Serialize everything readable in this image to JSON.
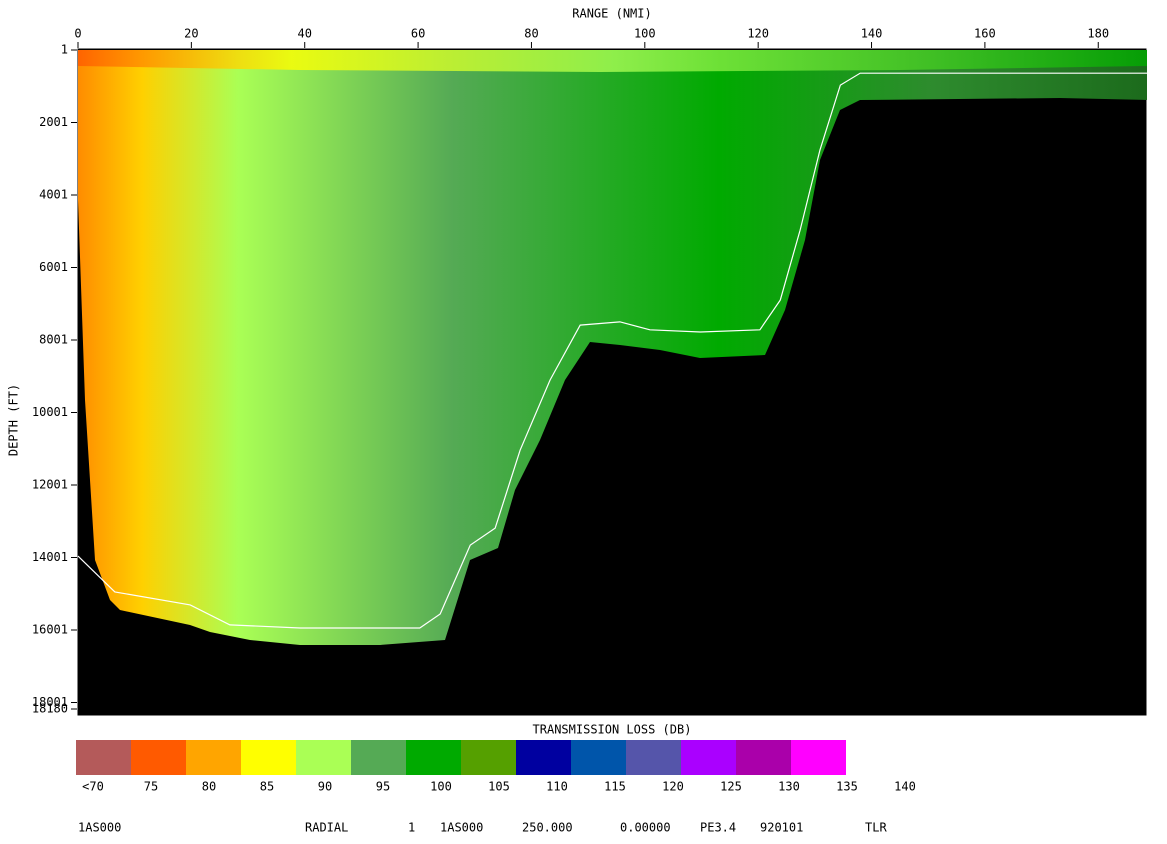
{
  "chart_data": {
    "type": "line",
    "xlabel": "RANGE (NMI)",
    "ylabel": "DEPTH (FT)",
    "xlim": [
      0,
      188.6
    ],
    "xticks": [
      0,
      20,
      40,
      60,
      80,
      100,
      120,
      140,
      160,
      180
    ],
    "ylim": [
      1,
      18180
    ],
    "yticks": [
      1,
      2001,
      4001,
      6001,
      8001,
      10001,
      12001,
      14001,
      16001,
      18001,
      18180
    ],
    "y_inverted": true,
    "series": [
      {
        "color": "#ffffff",
        "x": [
          0,
          6.5,
          19.8,
          26.8,
          39.2,
          60.3,
          63.9,
          69.2,
          73.6,
          78,
          83.3,
          88.6,
          95.6,
          100.9,
          109.8,
          120.3,
          123.9,
          127.4,
          130.9,
          134.5,
          138,
          188.6
        ],
        "values": [
          13960,
          14950,
          15310,
          15860,
          15945,
          15945,
          15560,
          13660,
          13190,
          11040,
          9100,
          7590,
          7500,
          7720,
          7780,
          7720,
          6900,
          4970,
          2760,
          970,
          640,
          640
        ]
      }
    ],
    "colorbar": {
      "title": "TRANSMISSION LOSS (DB)",
      "colors": [
        "#b45a5a",
        "#ff5a00",
        "#ffa500",
        "#ffff00",
        "#aaff55",
        "#55aa55",
        "#00aa00",
        "#55a000",
        "#0000a0",
        "#0055aa",
        "#5555aa",
        "#aa00ff",
        "#aa00aa",
        "#ff00ff",
        "#ffffff"
      ],
      "labels": [
        "<70",
        "75",
        "80",
        "85",
        "90",
        "95",
        "100",
        "105",
        "110",
        "115",
        "120",
        "125",
        "130",
        "135",
        "140"
      ]
    },
    "footer": [
      "1AS000",
      "RADIAL",
      "1",
      "1AS000",
      "250.000",
      "0.00000",
      "PE3.4",
      "920101",
      "TLR"
    ]
  }
}
